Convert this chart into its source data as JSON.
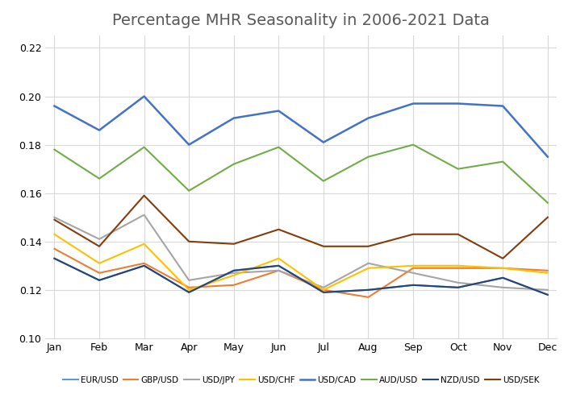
{
  "title": "Percentage MHR Seasonality in 2006-2021 Data",
  "months": [
    "Jan",
    "Feb",
    "Mar",
    "Apr",
    "May",
    "Jun",
    "Jul",
    "Aug",
    "Sep",
    "Oct",
    "Nov",
    "Dec"
  ],
  "series_order": [
    "EUR/USD",
    "GBP/USD",
    "USD/JPY",
    "USD/CHF",
    "USD/CAD",
    "AUD/USD",
    "NZD/USD",
    "USD/SEK"
  ],
  "series": {
    "EUR/USD": {
      "color": "#5B9BD5",
      "lw": 1.5,
      "values": [
        0.133,
        0.124,
        0.13,
        0.119,
        0.128,
        0.13,
        0.119,
        0.12,
        0.122,
        0.121,
        0.125,
        0.118
      ]
    },
    "GBP/USD": {
      "color": "#ED7D31",
      "lw": 1.5,
      "values": [
        0.137,
        0.127,
        0.131,
        0.121,
        0.122,
        0.128,
        0.12,
        0.117,
        0.129,
        0.129,
        0.129,
        0.128
      ]
    },
    "USD/JPY": {
      "color": "#A5A5A5",
      "lw": 1.5,
      "values": [
        0.15,
        0.141,
        0.151,
        0.124,
        0.127,
        0.128,
        0.121,
        0.131,
        0.127,
        0.123,
        0.121,
        0.12
      ]
    },
    "USD/CHF": {
      "color": "#FFC000",
      "lw": 1.5,
      "values": [
        0.143,
        0.131,
        0.139,
        0.12,
        0.126,
        0.133,
        0.12,
        0.129,
        0.13,
        0.13,
        0.129,
        0.127
      ]
    },
    "USD/CAD": {
      "color": "#4472C4",
      "lw": 1.8,
      "values": [
        0.196,
        0.186,
        0.2,
        0.18,
        0.191,
        0.194,
        0.181,
        0.191,
        0.197,
        0.197,
        0.196,
        0.175
      ]
    },
    "AUD/USD": {
      "color": "#70AD47",
      "lw": 1.5,
      "values": [
        0.178,
        0.166,
        0.179,
        0.161,
        0.172,
        0.179,
        0.165,
        0.175,
        0.18,
        0.17,
        0.173,
        0.156
      ]
    },
    "NZD/USD": {
      "color": "#264478",
      "lw": 1.5,
      "values": [
        0.133,
        0.124,
        0.13,
        0.119,
        0.128,
        0.13,
        0.119,
        0.12,
        0.122,
        0.121,
        0.125,
        0.118
      ]
    },
    "USD/SEK": {
      "color": "#843C0C",
      "lw": 1.5,
      "values": [
        0.149,
        0.138,
        0.159,
        0.14,
        0.139,
        0.145,
        0.138,
        0.138,
        0.143,
        0.143,
        0.133,
        0.15
      ]
    }
  },
  "ylim": [
    0.1,
    0.225
  ],
  "yticks": [
    0.1,
    0.12,
    0.14,
    0.16,
    0.18,
    0.2,
    0.22
  ],
  "background_color": "#FFFFFF",
  "grid_color": "#D9D9D9",
  "title_color": "#595959",
  "title_fontsize": 14
}
